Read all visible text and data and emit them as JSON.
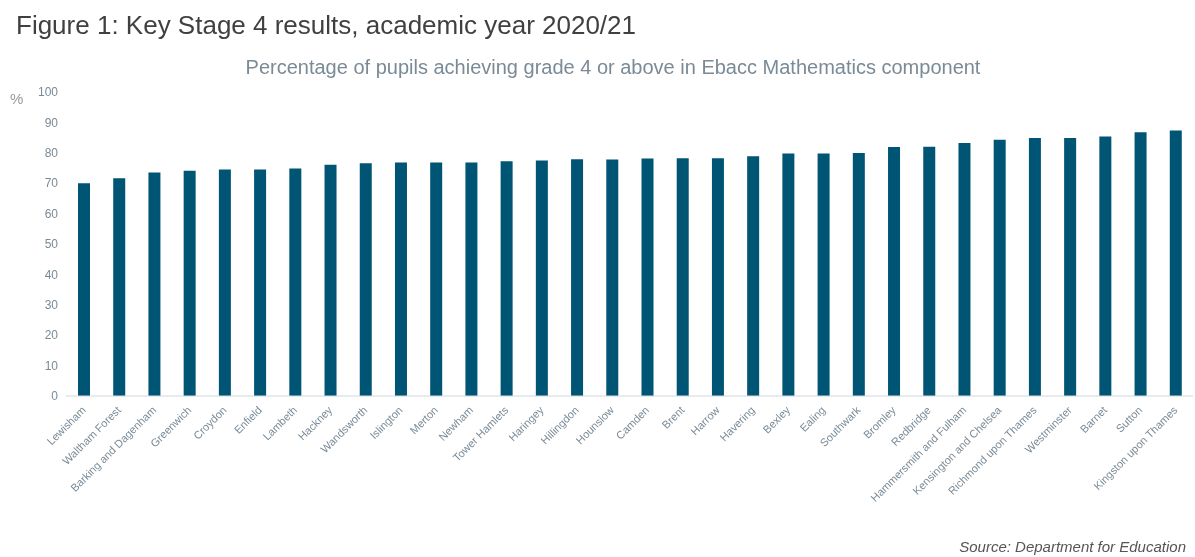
{
  "chart_data": {
    "type": "bar",
    "title": "Figure 1: Key Stage 4 results, academic year 2020/21",
    "subtitle": "Percentage of pupils achieving grade 4 or above in Ebacc Mathematics component",
    "ylabel": "%",
    "categories": [
      "Lewisham",
      "Waltham Forest",
      "Barking and Dagenham",
      "Greenwich",
      "Croydon",
      "Enfield",
      "Lambeth",
      "Hackney",
      "Wandsworth",
      "Islington",
      "Merton",
      "Newham",
      "Tower Hamlets",
      "Haringey",
      "Hillingdon",
      "Hounslow",
      "Camden",
      "Brent",
      "Harrow",
      "Havering",
      "Bexley",
      "Ealing",
      "Southwark",
      "Bromley",
      "Redbridge",
      "Hammersmith and Fulham",
      "Kensington and Chelsea",
      "Richmond upon Thames",
      "Westminster",
      "Barnet",
      "Sutton",
      "Kingston upon Thames"
    ],
    "values": [
      70.0,
      71.6,
      73.5,
      74.1,
      74.5,
      74.5,
      74.8,
      76.1,
      76.6,
      76.8,
      76.8,
      76.8,
      77.2,
      77.5,
      77.9,
      77.8,
      78.1,
      78.2,
      78.2,
      78.9,
      79.8,
      79.8,
      79.9,
      81.9,
      82.0,
      83.2,
      84.3,
      84.9,
      84.9,
      85.4,
      86.8,
      87.3
    ],
    "color": "#005574",
    "ylim": [
      0,
      100
    ],
    "yticks": [
      0,
      10,
      20,
      30,
      40,
      50,
      60,
      70,
      80,
      90,
      100
    ],
    "grid": false,
    "legend": false,
    "annotations": [
      "Source: Department for Education"
    ]
  }
}
